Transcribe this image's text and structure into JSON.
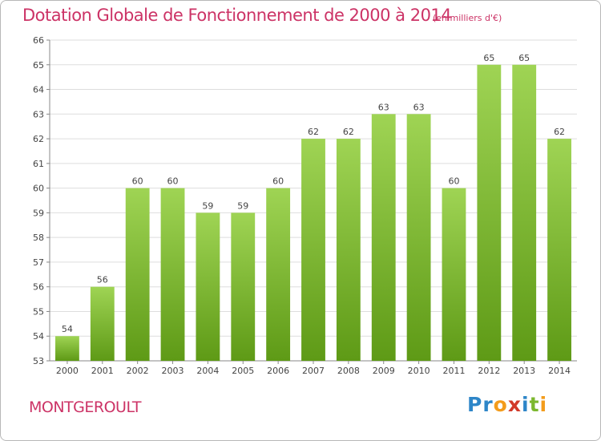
{
  "title": "Dotation Globale de Fonctionnement de 2000 à 2014",
  "subtitle": "(en milliers d'€)",
  "commune": "MONTGEROULT",
  "logo": {
    "text": "Proxiti",
    "letters": [
      {
        "ch": "P",
        "color": "#2e86c8"
      },
      {
        "ch": "r",
        "color": "#2e86c8"
      },
      {
        "ch": "o",
        "color": "#f39c1c"
      },
      {
        "ch": "x",
        "color": "#d23a2a"
      },
      {
        "ch": "i",
        "color": "#2e86c8"
      },
      {
        "ch": "t",
        "color": "#7cb82f"
      },
      {
        "ch": "i",
        "color": "#f39c1c"
      }
    ]
  },
  "colors": {
    "bar_top": "#9fd454",
    "bar_bottom": "#5e9a16",
    "grid": "#dddddd",
    "text_accent": "#cc3366"
  },
  "chart_data": {
    "type": "bar",
    "title": "Dotation Globale de Fonctionnement de 2000 à 2014",
    "subtitle": "(en milliers d'€)",
    "categories": [
      "2000",
      "2001",
      "2002",
      "2003",
      "2004",
      "2005",
      "2006",
      "2007",
      "2008",
      "2009",
      "2010",
      "2011",
      "2012",
      "2013",
      "2014"
    ],
    "values": [
      54,
      56,
      60,
      60,
      59,
      59,
      60,
      62,
      62,
      63,
      63,
      60,
      65,
      65,
      62
    ],
    "ylim": [
      53,
      66
    ],
    "yticks": [
      53,
      54,
      55,
      56,
      57,
      58,
      59,
      60,
      61,
      62,
      63,
      64,
      65,
      66
    ],
    "grid": true,
    "xlabel": "",
    "ylabel": ""
  }
}
